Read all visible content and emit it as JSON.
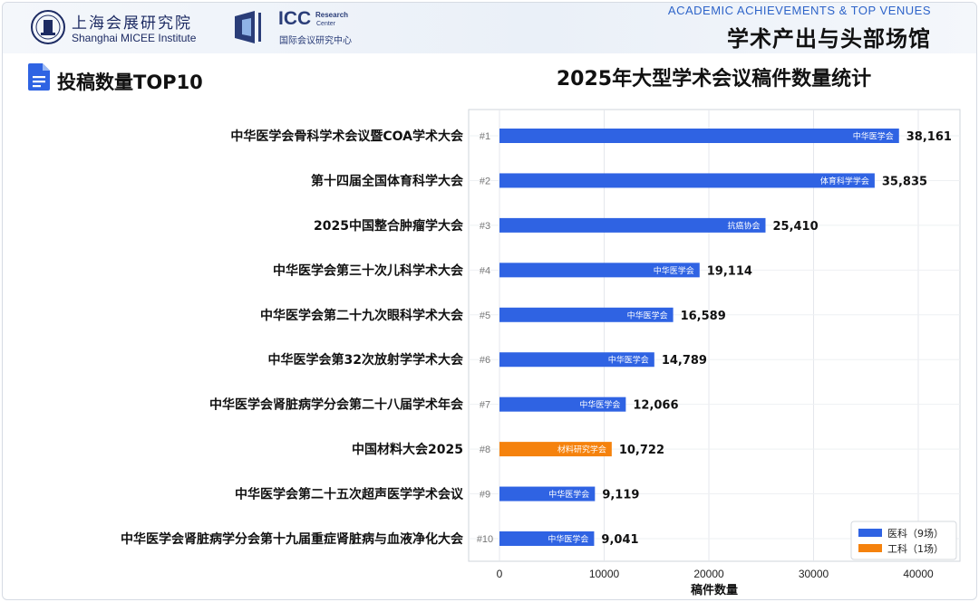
{
  "header": {
    "org1_cn": "上海会展研究院",
    "org1_en": "Shanghai MICEE Institute",
    "org2_name": "ICC",
    "org2_research": "Research",
    "org2_center": "Center",
    "org2_cn": "国际会议研究中心",
    "title_en": "ACADEMIC ACHIEVEMENTS & TOP VENUES",
    "title_cn": "学术产出与头部场馆"
  },
  "section": {
    "title": "投稿数量TOP10",
    "icon": "document-icon"
  },
  "chart_data": {
    "type": "bar",
    "orientation": "horizontal",
    "title": "2025年大型学术会议稿件数量统计",
    "xlabel": "稿件数量",
    "ylabel": "",
    "xlim": [
      0,
      44000
    ],
    "xticks": [
      0,
      10000,
      20000,
      30000,
      40000
    ],
    "grid": true,
    "legend_position": "bottom-right",
    "categories": [
      "中华医学会骨科学术会议暨COA学术大会",
      "第十四届全国体育科学大会",
      "2025中国整合肿瘤学大会",
      "中华医学会第三十次儿科学术大会",
      "中华医学会第二十九次眼科学术大会",
      "中华医学会第32次放射学学术大会",
      "中华医学会肾脏病学分会第二十八届学术年会",
      "中国材料大会2025",
      "中华医学会第二十五次超声医学学术会议",
      "中华医学会肾脏病学分会第十九届重症肾脏病与血液净化大会"
    ],
    "ranks": [
      "#1",
      "#2",
      "#3",
      "#4",
      "#5",
      "#6",
      "#7",
      "#8",
      "#9",
      "#10"
    ],
    "values": [
      38161,
      35835,
      25410,
      19114,
      16589,
      14789,
      12066,
      10722,
      9119,
      9041
    ],
    "value_labels": [
      "38,161",
      "35,835",
      "25,410",
      "19,114",
      "16,589",
      "14,789",
      "12,066",
      "10,722",
      "9,119",
      "9,041"
    ],
    "organizers": [
      "中华医学会",
      "体育科学学会",
      "抗癌协会",
      "中华医学会",
      "中华医学会",
      "中华医学会",
      "中华医学会",
      "材料研究学会",
      "中华医学会",
      "中华医学会"
    ],
    "groups": [
      "medical",
      "medical",
      "medical",
      "medical",
      "medical",
      "medical",
      "medical",
      "engineering",
      "medical",
      "medical"
    ],
    "legend": [
      {
        "key": "medical",
        "label": "医科（9场）",
        "color": "#2f63e3"
      },
      {
        "key": "engineering",
        "label": "工科（1场）",
        "color": "#f5820d"
      }
    ]
  }
}
